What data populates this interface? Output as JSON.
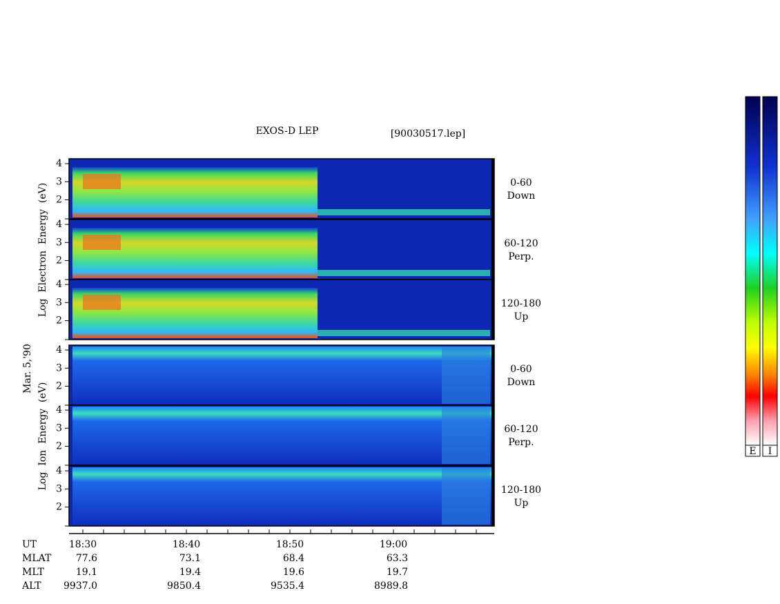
{
  "title": "EXOS-D LEP",
  "file": "[90030517.lep]",
  "date": "Mar. 5,'90",
  "groups": [
    {
      "axis_label": "Log  Electron  Energy  (eV)",
      "panels": [
        {
          "yticks": [
            4,
            3,
            2
          ],
          "pitch": "0-60",
          "direction": "Down"
        },
        {
          "yticks": [
            4,
            3,
            2
          ],
          "pitch": "60-120",
          "direction": "Perp."
        },
        {
          "yticks": [
            4,
            3,
            2
          ],
          "pitch": "120-180",
          "direction": "Up"
        }
      ]
    },
    {
      "axis_label": "Log  Ion  Energy  (eV)",
      "panels": [
        {
          "yticks": [
            4,
            3,
            2
          ],
          "pitch": "0-60",
          "direction": "Down"
        },
        {
          "yticks": [
            4,
            3,
            2
          ],
          "pitch": "60-120",
          "direction": "Perp."
        },
        {
          "yticks": [
            4,
            3,
            2
          ],
          "pitch": "120-180",
          "direction": "Up"
        }
      ]
    }
  ],
  "time_axis": {
    "label": "UT",
    "ticks": [
      "18:30",
      "18:40",
      "18:50",
      "19:00"
    ]
  },
  "orbit": [
    {
      "label": "MLAT",
      "values": [
        "77.6",
        "73.1",
        "68.4",
        "63.3"
      ]
    },
    {
      "label": "MLT",
      "values": [
        "19.1",
        "19.4",
        "19.6",
        "19.7"
      ]
    },
    {
      "label": "ALT",
      "values": [
        "9937.0",
        "9850.4",
        "9535.4",
        "8989.8"
      ]
    }
  ],
  "colorbars": [
    "E",
    "I"
  ]
}
